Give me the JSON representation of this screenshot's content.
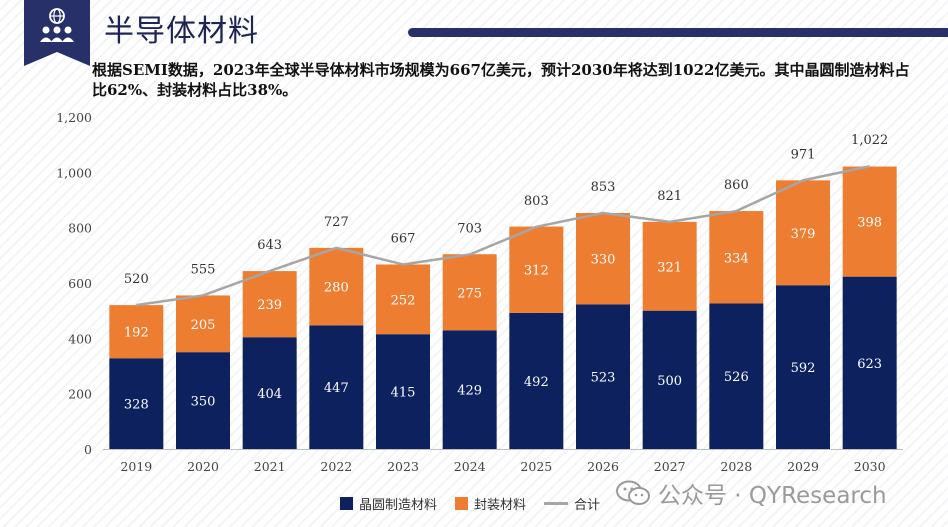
{
  "header": {
    "title": "半导体材料",
    "description": "根据SEMI数据，2023年全球半导体材料市场规模为667亿美元，预计2030年将达到1022亿美元。其中晶圆制造材料占比62%、封装材料占比38%。"
  },
  "watermark": {
    "text": "公众号 · QYResearch"
  },
  "colors": {
    "wafer": "#0c215e",
    "packaging": "#ed7d31",
    "total_line": "#a6a6a6",
    "title_dark": "#28306a"
  },
  "chart_data": {
    "type": "bar",
    "stacked": true,
    "categories": [
      "2019",
      "2020",
      "2021",
      "2022",
      "2023",
      "2024",
      "2025",
      "2026",
      "2027",
      "2028",
      "2029",
      "2030"
    ],
    "series": [
      {
        "name": "晶圆制造材料",
        "values": [
          328,
          350,
          404,
          447,
          415,
          429,
          492,
          523,
          500,
          526,
          592,
          623
        ]
      },
      {
        "name": "封装材料",
        "values": [
          192,
          205,
          239,
          280,
          252,
          275,
          312,
          330,
          321,
          334,
          379,
          398
        ]
      }
    ],
    "total": {
      "name": "合计",
      "values": [
        520,
        555,
        643,
        727,
        667,
        703,
        803,
        853,
        821,
        860,
        971,
        1022
      ],
      "labels": [
        "520",
        "555",
        "643",
        "727",
        "667",
        "703",
        "803",
        "853",
        "821",
        "860",
        "971",
        "1,022"
      ]
    },
    "ylim": [
      0,
      1200
    ],
    "yticks": [
      0,
      200,
      400,
      600,
      800,
      1000,
      1200
    ],
    "ytick_labels": [
      "0",
      "200",
      "400",
      "600",
      "800",
      "1,000",
      "1,200"
    ],
    "grid": false,
    "legend_position": "bottom"
  }
}
